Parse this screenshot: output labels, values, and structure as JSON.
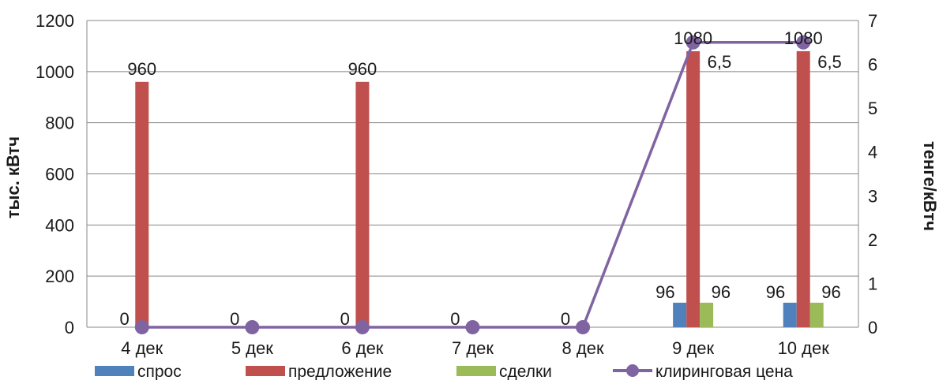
{
  "chart_data": {
    "type": "bar",
    "categories": [
      "4 дек",
      "5 дек",
      "6 дек",
      "7 дек",
      "8 дек",
      "9 дек",
      "10 дек"
    ],
    "series": [
      {
        "name": "спрос",
        "type": "bar",
        "axis": "left",
        "color": "#4f81bd",
        "values": [
          0,
          0,
          0,
          0,
          0,
          96,
          96
        ],
        "labels": [
          "",
          "",
          "",
          "",
          "",
          "96",
          "96"
        ]
      },
      {
        "name": "предложение",
        "type": "bar",
        "axis": "left",
        "color": "#c0504d",
        "values": [
          960,
          0,
          960,
          0,
          0,
          1080,
          1080
        ],
        "labels": [
          "960",
          "",
          "960",
          "",
          "",
          "1080",
          "1080"
        ]
      },
      {
        "name": "сделки",
        "type": "bar",
        "axis": "left",
        "color": "#9bbb59",
        "values": [
          0,
          0,
          0,
          0,
          0,
          96,
          96
        ],
        "labels": [
          "",
          "",
          "",
          "",
          "",
          "96",
          "96"
        ]
      },
      {
        "name": "клиринговая цена",
        "type": "line",
        "axis": "right",
        "color": "#8064a2",
        "values": [
          0,
          0,
          0,
          0,
          0,
          6.5,
          6.5
        ],
        "labels": [
          "0",
          "0",
          "0",
          "0",
          "0",
          "6,5",
          "6,5"
        ]
      }
    ],
    "ylabel": "тыс. кВтч",
    "y2label": "тенге/кВтч",
    "ylim": [
      0,
      1200
    ],
    "y2lim": [
      0,
      7
    ],
    "yticks": [
      "0",
      "200",
      "400",
      "600",
      "800",
      "1000",
      "1200"
    ],
    "y2ticks": [
      "0",
      "1",
      "2",
      "3",
      "4",
      "5",
      "6",
      "7"
    ],
    "grid": true,
    "legend_position": "bottom"
  }
}
